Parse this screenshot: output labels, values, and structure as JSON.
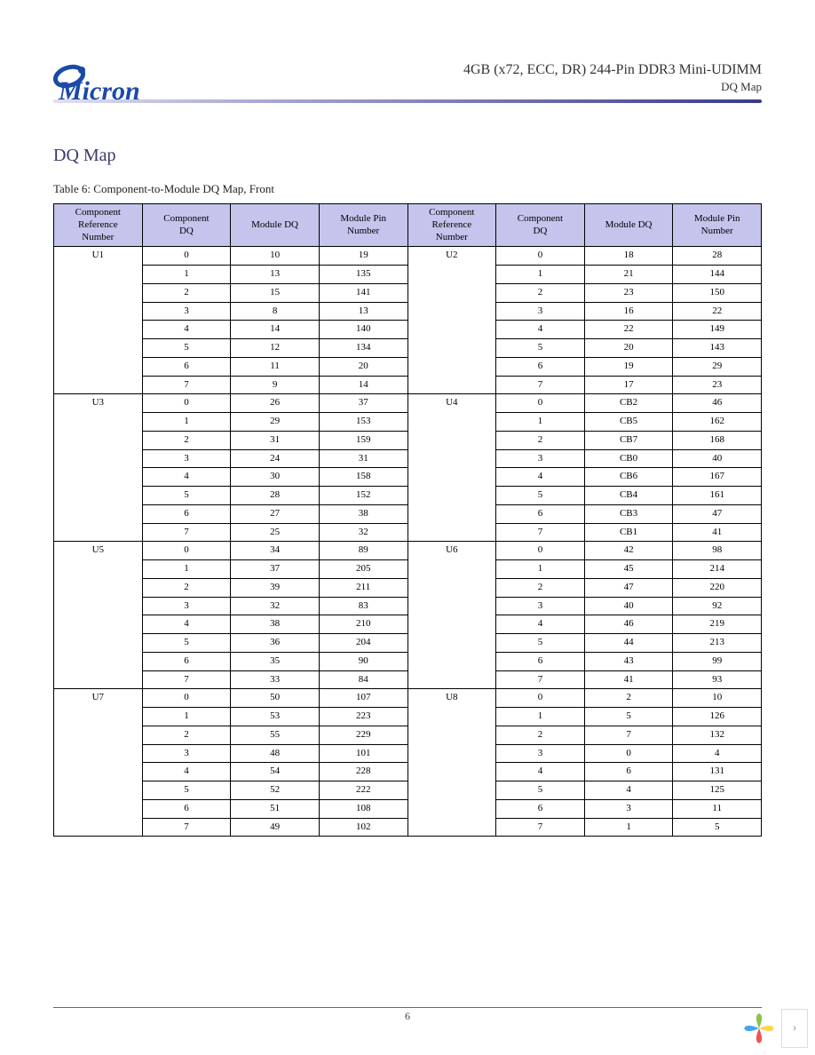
{
  "header": {
    "brand": "Micron",
    "title": "4GB (x72, ECC, DR) 244-Pin DDR3 Mini-UDIMM",
    "subtitle": "DQ Map"
  },
  "section_title": "DQ Map",
  "table_caption": "Table 6: Component-to-Module DQ Map, Front",
  "columns": [
    "Component Reference Number",
    "Component DQ",
    "Module DQ",
    "Module Pin Number",
    "Component Reference Number",
    "Component DQ",
    "Module DQ",
    "Module Pin Number"
  ],
  "groups": [
    {
      "left_ref": "U1",
      "right_ref": "U2",
      "rows": [
        {
          "l": [
            "0",
            "10",
            "19"
          ],
          "r": [
            "0",
            "18",
            "28"
          ]
        },
        {
          "l": [
            "1",
            "13",
            "135"
          ],
          "r": [
            "1",
            "21",
            "144"
          ]
        },
        {
          "l": [
            "2",
            "15",
            "141"
          ],
          "r": [
            "2",
            "23",
            "150"
          ]
        },
        {
          "l": [
            "3",
            "8",
            "13"
          ],
          "r": [
            "3",
            "16",
            "22"
          ]
        },
        {
          "l": [
            "4",
            "14",
            "140"
          ],
          "r": [
            "4",
            "22",
            "149"
          ]
        },
        {
          "l": [
            "5",
            "12",
            "134"
          ],
          "r": [
            "5",
            "20",
            "143"
          ]
        },
        {
          "l": [
            "6",
            "11",
            "20"
          ],
          "r": [
            "6",
            "19",
            "29"
          ]
        },
        {
          "l": [
            "7",
            "9",
            "14"
          ],
          "r": [
            "7",
            "17",
            "23"
          ]
        }
      ]
    },
    {
      "left_ref": "U3",
      "right_ref": "U4",
      "rows": [
        {
          "l": [
            "0",
            "26",
            "37"
          ],
          "r": [
            "0",
            "CB2",
            "46"
          ]
        },
        {
          "l": [
            "1",
            "29",
            "153"
          ],
          "r": [
            "1",
            "CB5",
            "162"
          ]
        },
        {
          "l": [
            "2",
            "31",
            "159"
          ],
          "r": [
            "2",
            "CB7",
            "168"
          ]
        },
        {
          "l": [
            "3",
            "24",
            "31"
          ],
          "r": [
            "3",
            "CB0",
            "40"
          ]
        },
        {
          "l": [
            "4",
            "30",
            "158"
          ],
          "r": [
            "4",
            "CB6",
            "167"
          ]
        },
        {
          "l": [
            "5",
            "28",
            "152"
          ],
          "r": [
            "5",
            "CB4",
            "161"
          ]
        },
        {
          "l": [
            "6",
            "27",
            "38"
          ],
          "r": [
            "6",
            "CB3",
            "47"
          ]
        },
        {
          "l": [
            "7",
            "25",
            "32"
          ],
          "r": [
            "7",
            "CB1",
            "41"
          ]
        }
      ]
    },
    {
      "left_ref": "U5",
      "right_ref": "U6",
      "rows": [
        {
          "l": [
            "0",
            "34",
            "89"
          ],
          "r": [
            "0",
            "42",
            "98"
          ]
        },
        {
          "l": [
            "1",
            "37",
            "205"
          ],
          "r": [
            "1",
            "45",
            "214"
          ]
        },
        {
          "l": [
            "2",
            "39",
            "211"
          ],
          "r": [
            "2",
            "47",
            "220"
          ]
        },
        {
          "l": [
            "3",
            "32",
            "83"
          ],
          "r": [
            "3",
            "40",
            "92"
          ]
        },
        {
          "l": [
            "4",
            "38",
            "210"
          ],
          "r": [
            "4",
            "46",
            "219"
          ]
        },
        {
          "l": [
            "5",
            "36",
            "204"
          ],
          "r": [
            "5",
            "44",
            "213"
          ]
        },
        {
          "l": [
            "6",
            "35",
            "90"
          ],
          "r": [
            "6",
            "43",
            "99"
          ]
        },
        {
          "l": [
            "7",
            "33",
            "84"
          ],
          "r": [
            "7",
            "41",
            "93"
          ]
        }
      ]
    },
    {
      "left_ref": "U7",
      "right_ref": "U8",
      "rows": [
        {
          "l": [
            "0",
            "50",
            "107"
          ],
          "r": [
            "0",
            "2",
            "10"
          ]
        },
        {
          "l": [
            "1",
            "53",
            "223"
          ],
          "r": [
            "1",
            "5",
            "126"
          ]
        },
        {
          "l": [
            "2",
            "55",
            "229"
          ],
          "r": [
            "2",
            "7",
            "132"
          ]
        },
        {
          "l": [
            "3",
            "48",
            "101"
          ],
          "r": [
            "3",
            "0",
            "4"
          ]
        },
        {
          "l": [
            "4",
            "54",
            "228"
          ],
          "r": [
            "4",
            "6",
            "131"
          ]
        },
        {
          "l": [
            "5",
            "52",
            "222"
          ],
          "r": [
            "5",
            "4",
            "125"
          ]
        },
        {
          "l": [
            "6",
            "51",
            "108"
          ],
          "r": [
            "6",
            "3",
            "11"
          ]
        },
        {
          "l": [
            "7",
            "49",
            "102"
          ],
          "r": [
            "7",
            "1",
            "5"
          ]
        }
      ]
    }
  ],
  "page_number": "6",
  "styling": {
    "header_bg": "#c4c4ec",
    "border_color": "#000000",
    "font_size_pt": 11,
    "col_widths_pct": [
      12.5,
      12.5,
      12.5,
      12.5,
      12.5,
      12.5,
      12.5,
      12.5
    ],
    "rule_gradient": [
      "#e0e0f0",
      "#b0b0d8",
      "#3a3a8a"
    ],
    "logo_color": "#1a4aa8"
  },
  "widget": {
    "chevron": "›"
  }
}
